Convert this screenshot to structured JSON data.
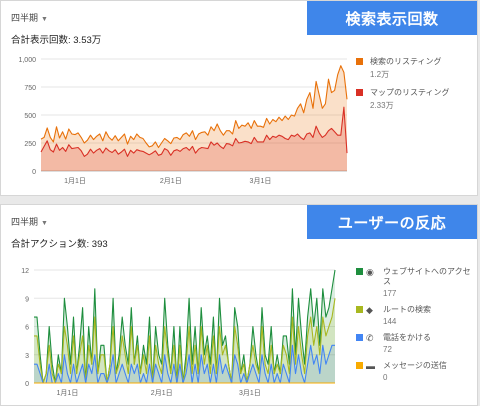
{
  "card1": {
    "period": "四半期",
    "total": "合計表示回数: 3.53万",
    "banner": "検索表示回数",
    "legend": [
      {
        "name": "検索のリスティング",
        "value": "1.2万",
        "color": "#e8710a"
      },
      {
        "name": "マップのリスティング",
        "value": "2.33万",
        "color": "#d93025"
      }
    ]
  },
  "card2": {
    "period": "四半期",
    "total": "合計アクション数: 393",
    "banner": "ユーザーの反応",
    "legend": [
      {
        "name": "ウェブサイトへのアクセス",
        "value": "177",
        "color": "#1e8e3e",
        "icon": "globe-icon",
        "glyph": "◉"
      },
      {
        "name": "ルートの検索",
        "value": "144",
        "color": "#a8b820",
        "icon": "directions-icon",
        "glyph": "◆"
      },
      {
        "name": "電話をかける",
        "value": "72",
        "color": "#4285f4",
        "icon": "phone-icon",
        "glyph": "✆"
      },
      {
        "name": "メッセージの送信",
        "value": "0",
        "color": "#f9ab00",
        "icon": "message-icon",
        "glyph": "▬"
      }
    ]
  },
  "chart_data": [
    {
      "type": "area",
      "ylim": [
        0,
        1000
      ],
      "yticks": [
        "0",
        "250",
        "500",
        "750",
        "1,000"
      ],
      "xticks": [
        "1月1日",
        "2月1日",
        "3月1日"
      ],
      "xtick_index": [
        11,
        42,
        71
      ],
      "series": [
        {
          "name": "検索のリスティング",
          "color": "#e8710a",
          "values": [
            285,
            300,
            385,
            300,
            260,
            395,
            295,
            350,
            285,
            375,
            330,
            325,
            340,
            300,
            250,
            275,
            320,
            280,
            310,
            330,
            270,
            350,
            300,
            275,
            315,
            270,
            300,
            330,
            240,
            310,
            280,
            330,
            300,
            290,
            250,
            215,
            225,
            260,
            210,
            250,
            290,
            270,
            245,
            295,
            300,
            280,
            325,
            340,
            310,
            360,
            280,
            330,
            345,
            350,
            320,
            395,
            360,
            420,
            360,
            320,
            360,
            360,
            330,
            450,
            380,
            410,
            400,
            430,
            380,
            450,
            400,
            400,
            390,
            470,
            420,
            460,
            440,
            480,
            450,
            490,
            460,
            500,
            490,
            560,
            600,
            520,
            640,
            700,
            560,
            800,
            680,
            560,
            600,
            820,
            700,
            720,
            860,
            940,
            880,
            640
          ]
        },
        {
          "name": "マップのリスティング",
          "color": "#d93025",
          "values": [
            170,
            220,
            270,
            190,
            170,
            240,
            185,
            210,
            175,
            235,
            200,
            205,
            210,
            180,
            130,
            150,
            195,
            160,
            185,
            200,
            160,
            205,
            180,
            165,
            190,
            150,
            170,
            195,
            130,
            185,
            160,
            190,
            180,
            175,
            160,
            145,
            160,
            180,
            140,
            150,
            200,
            185,
            140,
            180,
            190,
            175,
            200,
            210,
            185,
            220,
            160,
            195,
            210,
            205,
            200,
            260,
            230,
            250,
            220,
            200,
            245,
            240,
            225,
            290,
            250,
            255,
            265,
            260,
            245,
            300,
            260,
            260,
            260,
            320,
            280,
            310,
            300,
            320,
            310,
            290,
            280,
            320,
            310,
            330,
            300,
            280,
            330,
            340,
            300,
            400,
            340,
            300,
            320,
            360,
            380,
            350,
            320,
            320,
            570,
            160
          ]
        }
      ]
    },
    {
      "type": "area",
      "ylim": [
        0,
        12
      ],
      "yticks": [
        "0",
        "3",
        "6",
        "9",
        "12"
      ],
      "xticks": [
        "1月1日",
        "2月1日",
        "3月1日"
      ],
      "xtick_index": [
        11,
        42,
        71
      ],
      "series": [
        {
          "name": "ウェブサイトへのアクセス",
          "color": "#1e8e3e",
          "values": [
            7,
            7,
            3,
            0,
            1,
            6,
            2,
            0,
            3,
            1,
            9,
            6,
            2,
            7,
            1,
            4,
            8,
            0,
            6,
            2,
            10,
            1,
            4,
            4,
            0,
            2,
            9,
            1,
            3,
            7,
            4,
            2,
            8,
            2,
            5,
            1,
            4,
            2,
            7,
            0,
            6,
            3,
            2,
            9,
            4,
            1,
            6,
            0,
            6,
            0,
            3,
            9,
            2,
            6,
            1,
            8,
            3,
            5,
            2,
            7,
            1,
            9,
            4,
            5,
            2,
            0,
            8,
            6,
            1,
            3,
            0,
            2,
            6,
            3,
            1,
            8,
            3,
            2,
            6,
            1,
            3,
            1,
            5,
            5,
            2,
            10,
            3,
            9,
            5,
            2,
            7,
            10,
            6,
            9,
            4,
            10,
            7,
            8,
            10,
            12
          ]
        },
        {
          "name": "ルートの検索",
          "color": "#a8b820",
          "values": [
            5,
            5,
            2,
            0,
            1,
            4,
            1,
            0,
            2,
            1,
            6,
            4,
            1,
            5,
            1,
            3,
            5,
            0,
            4,
            2,
            7,
            1,
            3,
            3,
            0,
            2,
            6,
            1,
            2,
            5,
            3,
            1,
            6,
            2,
            4,
            1,
            3,
            1,
            5,
            0,
            4,
            2,
            1,
            6,
            3,
            1,
            4,
            0,
            4,
            0,
            2,
            6,
            1,
            4,
            1,
            6,
            2,
            4,
            1,
            5,
            1,
            6,
            3,
            4,
            2,
            0,
            6,
            4,
            1,
            2,
            0,
            2,
            4,
            2,
            1,
            6,
            2,
            1,
            4,
            1,
            2,
            1,
            4,
            3,
            1,
            7,
            2,
            6,
            3,
            1,
            5,
            7,
            4,
            6,
            3,
            7,
            5,
            6,
            7,
            9
          ]
        },
        {
          "name": "電話をかける",
          "color": "#4285f4",
          "values": [
            2,
            2,
            1,
            0,
            0,
            2,
            0,
            0,
            1,
            0,
            3,
            1,
            0,
            2,
            0,
            1,
            2,
            0,
            2,
            1,
            3,
            0,
            1,
            1,
            0,
            1,
            3,
            0,
            1,
            2,
            1,
            0,
            2,
            1,
            2,
            0,
            1,
            0,
            2,
            0,
            2,
            1,
            0,
            3,
            1,
            0,
            2,
            0,
            2,
            0,
            1,
            3,
            0,
            2,
            0,
            3,
            1,
            2,
            0,
            2,
            0,
            3,
            1,
            2,
            1,
            0,
            3,
            2,
            0,
            1,
            0,
            1,
            2,
            1,
            0,
            3,
            1,
            0,
            2,
            0,
            1,
            0,
            2,
            1,
            0,
            4,
            1,
            3,
            1,
            0,
            2,
            4,
            2,
            3,
            1,
            4,
            2,
            3,
            4,
            4
          ]
        },
        {
          "name": "メッセージの送信",
          "color": "#f9ab00",
          "values": [
            0,
            0,
            0,
            0,
            0,
            0,
            0,
            0,
            0,
            0,
            0,
            0,
            0,
            0,
            0,
            0,
            0,
            0,
            0,
            0,
            0,
            0,
            0,
            0,
            0,
            0,
            0,
            0,
            0,
            0,
            0,
            0,
            0,
            0,
            0,
            0,
            0,
            0,
            0,
            0,
            0,
            0,
            0,
            0,
            0,
            0,
            0,
            0,
            0,
            0,
            0,
            0,
            0,
            0,
            0,
            0,
            0,
            0,
            0,
            0,
            0,
            0,
            0,
            0,
            0,
            0,
            0,
            0,
            0,
            0,
            0,
            0,
            0,
            0,
            0,
            0,
            0,
            0,
            0,
            0,
            0,
            0,
            0,
            0,
            0,
            0,
            0,
            0,
            0,
            0,
            0,
            0,
            0,
            0,
            0,
            0,
            0,
            0,
            0,
            0
          ]
        }
      ]
    }
  ]
}
